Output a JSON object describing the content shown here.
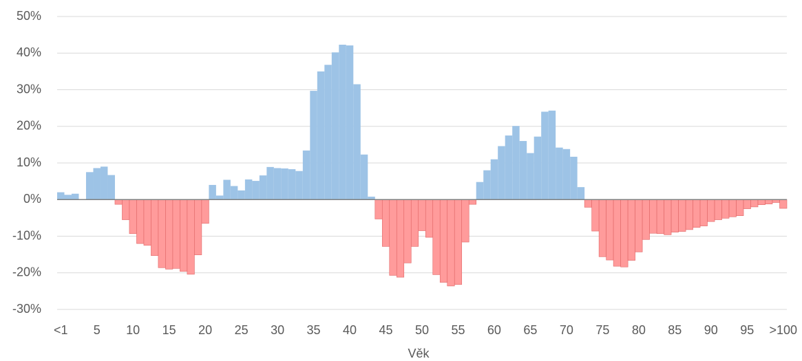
{
  "chart_data": {
    "type": "bar",
    "x_label": "Věk",
    "categories": [
      "<1",
      null,
      null,
      null,
      null,
      "5",
      null,
      null,
      null,
      null,
      "10",
      null,
      null,
      null,
      null,
      "15",
      null,
      null,
      null,
      null,
      "20",
      null,
      null,
      null,
      null,
      "25",
      null,
      null,
      null,
      null,
      "30",
      null,
      null,
      null,
      null,
      "35",
      null,
      null,
      null,
      null,
      "40",
      null,
      null,
      null,
      null,
      "45",
      null,
      null,
      null,
      null,
      "50",
      null,
      null,
      null,
      null,
      "55",
      null,
      null,
      null,
      null,
      "60",
      null,
      null,
      null,
      null,
      "65",
      null,
      null,
      null,
      null,
      "70",
      null,
      null,
      null,
      null,
      "75",
      null,
      null,
      null,
      null,
      "80",
      null,
      null,
      null,
      null,
      "85",
      null,
      null,
      null,
      null,
      "90",
      null,
      null,
      null,
      null,
      "95",
      null,
      null,
      null,
      null,
      ">100"
    ],
    "values": [
      2.0,
      1.3,
      1.6,
      0,
      7.5,
      8.6,
      9.0,
      6.7,
      -1.3,
      -5.5,
      -9.3,
      -12.0,
      -12.5,
      -15.3,
      -18.6,
      -19.0,
      -18.8,
      -19.6,
      -20.4,
      -15.1,
      -6.5,
      4.0,
      1.1,
      5.4,
      3.7,
      2.5,
      5.5,
      5.1,
      6.6,
      8.9,
      8.6,
      8.5,
      8.3,
      7.8,
      13.4,
      29.7,
      35.0,
      36.8,
      40.2,
      42.3,
      42.1,
      31.5,
      12.3,
      0.8,
      -5.3,
      -12.8,
      -20.7,
      -21.2,
      -17.3,
      -12.8,
      -8.5,
      -10.3,
      -20.5,
      -22.6,
      -23.6,
      -23.2,
      -11.6,
      -1.3,
      4.8,
      8.0,
      11.0,
      14.6,
      17.5,
      20.1,
      16.0,
      12.7,
      17.2,
      24.0,
      24.3,
      14.2,
      13.8,
      11.7,
      3.4,
      -2.1,
      -8.6,
      -15.6,
      -16.5,
      -18.2,
      -18.4,
      -16.6,
      -14.3,
      -10.9,
      -9.2,
      -9.3,
      -9.6,
      -8.9,
      -8.7,
      -8.2,
      -7.6,
      -7.2,
      -6.0,
      -5.5,
      -5.1,
      -4.7,
      -4.4,
      -2.5,
      -2.0,
      -1.4,
      -1.2,
      -0.8,
      -2.4
    ],
    "colors": {
      "positive": "#9dc3e6",
      "negative": "#ff9b9b"
    },
    "ylim": [
      -30,
      50
    ],
    "yticks": [
      {
        "value": -30,
        "label": "-30%"
      },
      {
        "value": -20,
        "label": "-20%"
      },
      {
        "value": -10,
        "label": "-10%"
      },
      {
        "value": 0,
        "label": "0%"
      },
      {
        "value": 10,
        "label": "10%"
      },
      {
        "value": 20,
        "label": "20%"
      },
      {
        "value": 30,
        "label": "30%"
      },
      {
        "value": 40,
        "label": "40%"
      },
      {
        "value": 50,
        "label": "50%"
      }
    ],
    "grid": true
  }
}
